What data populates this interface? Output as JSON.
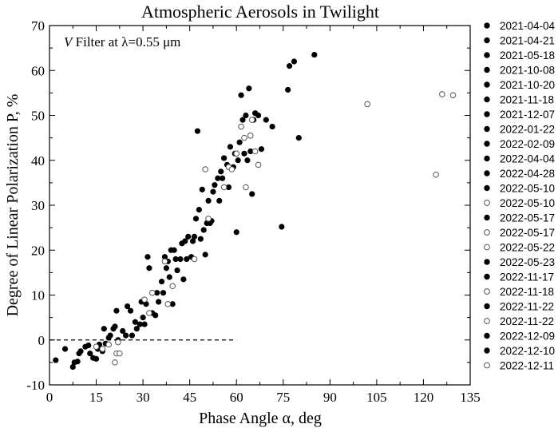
{
  "chart_data": {
    "type": "scatter",
    "title": "Atmospheric Aerosols in Twilight",
    "annotation": {
      "italic": "V",
      "text": " Filter at λ=0.55 μm"
    },
    "xlabel": "Phase Angle α, deg",
    "ylabel": "Degree of Linear Polarization P, %",
    "xlim": [
      0,
      135
    ],
    "ylim": [
      -10,
      70
    ],
    "xticks": [
      0,
      15,
      30,
      45,
      60,
      75,
      90,
      105,
      120,
      135
    ],
    "yticks": [
      -10,
      0,
      10,
      20,
      30,
      40,
      50,
      60,
      70
    ],
    "zero_line": {
      "x_from": 0,
      "x_to": 60,
      "y": 0
    },
    "legend_placement": "right",
    "legend": [
      {
        "label": "2021-04-04",
        "filled": true
      },
      {
        "label": "2021-04-21",
        "filled": true
      },
      {
        "label": "2021-05-18",
        "filled": true
      },
      {
        "label": "2021-10-08",
        "filled": true
      },
      {
        "label": "2021-10-20",
        "filled": true
      },
      {
        "label": "2021-11-18",
        "filled": true
      },
      {
        "label": "2021-12-07",
        "filled": true
      },
      {
        "label": "2022-01-22",
        "filled": true
      },
      {
        "label": "2022-02-09",
        "filled": true
      },
      {
        "label": "2022-04-04",
        "filled": true
      },
      {
        "label": "2022-04-28",
        "filled": true
      },
      {
        "label": "2022-05-10",
        "filled": true
      },
      {
        "label": "2022-05-10",
        "filled": false
      },
      {
        "label": "2022-05-17",
        "filled": true
      },
      {
        "label": "2022-05-17",
        "filled": false
      },
      {
        "label": "2022-05-22",
        "filled": false
      },
      {
        "label": "2022-05-23",
        "filled": true
      },
      {
        "label": "2022-11-17",
        "filled": true
      },
      {
        "label": "2022-11-18",
        "filled": false
      },
      {
        "label": "2022-11-22",
        "filled": true
      },
      {
        "label": "2022-11-22",
        "filled": false
      },
      {
        "label": "2022-12-09",
        "filled": true
      },
      {
        "label": "2022-12-10",
        "filled": true
      },
      {
        "label": "2022-12-11",
        "filled": false
      }
    ],
    "series": [
      {
        "marker": "filled",
        "points": [
          [
            2,
            -4.5
          ],
          [
            5,
            -2
          ],
          [
            7.5,
            -6
          ],
          [
            8,
            -5
          ],
          [
            9,
            -4.8
          ],
          [
            9.5,
            -3
          ],
          [
            10,
            -2.5
          ],
          [
            11.5,
            -1.5
          ],
          [
            12.5,
            -1.2
          ],
          [
            13,
            -3
          ],
          [
            14,
            -4
          ],
          [
            15,
            -4.2
          ],
          [
            15.5,
            -2
          ],
          [
            16,
            -1
          ],
          [
            17,
            -2.5
          ],
          [
            17.5,
            2.5
          ],
          [
            18,
            -0.8
          ],
          [
            19,
            0.5
          ],
          [
            19.5,
            1
          ],
          [
            20.5,
            2.5
          ],
          [
            21,
            3
          ],
          [
            21.5,
            6.5
          ],
          [
            22,
            0
          ],
          [
            23.5,
            2
          ],
          [
            24.5,
            1
          ],
          [
            25,
            7.5
          ],
          [
            26,
            6.5
          ],
          [
            26.5,
            1
          ],
          [
            27.5,
            4
          ],
          [
            28,
            2.5
          ],
          [
            29,
            3.5
          ],
          [
            29.5,
            8.5
          ],
          [
            30,
            5
          ],
          [
            30.5,
            3.5
          ],
          [
            31,
            8
          ],
          [
            31.5,
            18.5
          ],
          [
            32,
            16
          ],
          [
            33,
            6
          ],
          [
            34,
            5.5
          ],
          [
            34.5,
            10.5
          ],
          [
            35,
            8.5
          ],
          [
            36,
            13
          ],
          [
            36.5,
            10.5
          ],
          [
            37,
            18.5
          ],
          [
            37.5,
            16
          ],
          [
            38,
            17.5
          ],
          [
            38.5,
            14
          ],
          [
            39,
            20
          ],
          [
            39.5,
            8
          ],
          [
            40,
            20
          ],
          [
            40.5,
            18
          ],
          [
            41,
            15.5
          ],
          [
            42,
            18
          ],
          [
            42.5,
            21.5
          ],
          [
            43,
            13.5
          ],
          [
            43.5,
            22
          ],
          [
            44,
            18
          ],
          [
            44.5,
            23
          ],
          [
            45.5,
            18.5
          ],
          [
            46,
            22
          ],
          [
            46.5,
            23
          ],
          [
            47,
            27
          ],
          [
            47.5,
            46.5
          ],
          [
            48,
            29
          ],
          [
            48.5,
            22.5
          ],
          [
            49,
            33.5
          ],
          [
            49.5,
            24.5
          ],
          [
            50,
            19
          ],
          [
            50.5,
            26
          ],
          [
            51,
            31
          ],
          [
            51.5,
            26
          ],
          [
            52,
            26.5
          ],
          [
            52.5,
            33
          ],
          [
            53,
            34.5
          ],
          [
            54,
            36
          ],
          [
            54.5,
            31
          ],
          [
            55,
            37.5
          ],
          [
            55.5,
            36
          ],
          [
            56,
            40.5
          ],
          [
            57,
            39
          ],
          [
            57.5,
            34
          ],
          [
            58,
            43
          ],
          [
            59,
            38.5
          ],
          [
            59.5,
            41.5
          ],
          [
            60,
            24
          ],
          [
            60.5,
            40
          ],
          [
            61,
            44
          ],
          [
            61.5,
            54.5
          ],
          [
            62,
            49
          ],
          [
            62.5,
            41.5
          ],
          [
            63,
            50
          ],
          [
            63.5,
            40
          ],
          [
            64,
            56
          ],
          [
            64.5,
            42
          ],
          [
            65,
            32.5
          ],
          [
            65.5,
            49
          ],
          [
            66,
            50.5
          ],
          [
            67,
            50
          ],
          [
            68,
            42.5
          ],
          [
            69.5,
            49
          ],
          [
            71.5,
            47.5
          ],
          [
            74.5,
            25.2
          ],
          [
            76.5,
            55.7
          ],
          [
            77,
            61
          ],
          [
            78.5,
            62
          ],
          [
            80,
            45
          ],
          [
            85,
            63.5
          ]
        ]
      },
      {
        "marker": "open",
        "points": [
          [
            15,
            -1.5
          ],
          [
            17,
            -2
          ],
          [
            19,
            -1
          ],
          [
            21,
            -5
          ],
          [
            21.5,
            -3
          ],
          [
            22,
            -0.5
          ],
          [
            22.5,
            -3
          ],
          [
            30.5,
            9
          ],
          [
            32,
            6
          ],
          [
            33,
            10.5
          ],
          [
            37,
            17.5
          ],
          [
            38,
            8
          ],
          [
            39.5,
            12
          ],
          [
            46.5,
            18
          ],
          [
            50,
            38
          ],
          [
            51,
            27
          ],
          [
            56,
            34
          ],
          [
            57.5,
            38.5
          ],
          [
            58.5,
            38
          ],
          [
            60,
            41.5
          ],
          [
            61.5,
            47.5
          ],
          [
            62.5,
            45
          ],
          [
            63,
            34
          ],
          [
            64.5,
            45.5
          ],
          [
            65,
            49
          ],
          [
            66,
            42
          ],
          [
            67,
            39
          ],
          [
            102,
            52.5
          ],
          [
            124,
            36.8
          ],
          [
            126,
            54.7
          ],
          [
            129.5,
            54.5
          ]
        ]
      }
    ]
  }
}
